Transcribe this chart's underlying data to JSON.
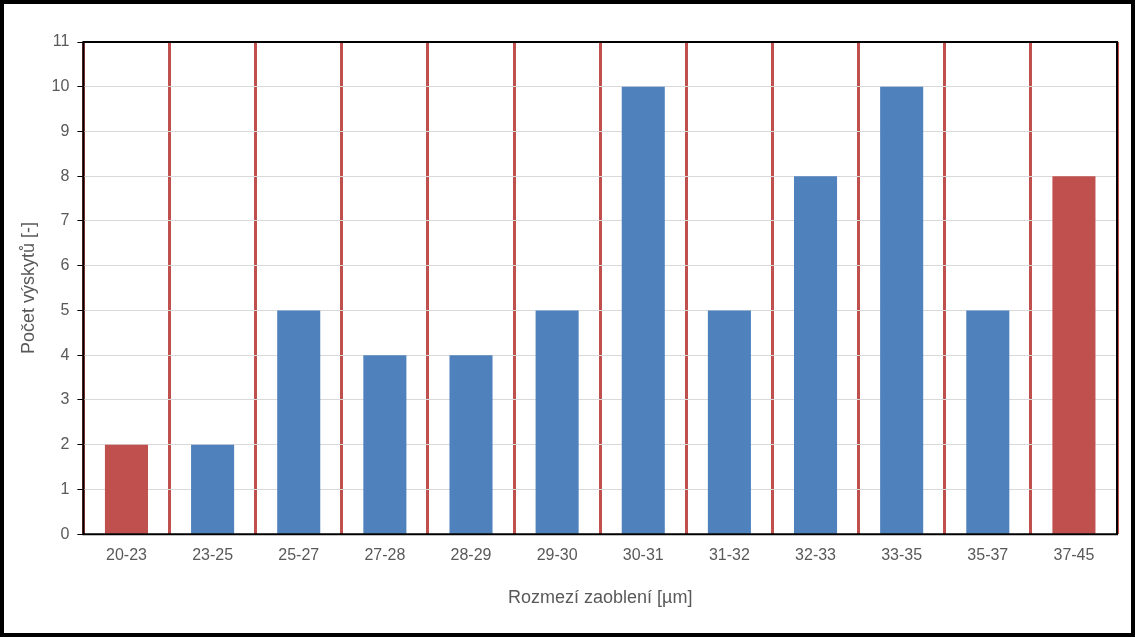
{
  "chart_data": {
    "type": "bar",
    "categories": [
      "20-23",
      "23-25",
      "25-27",
      "27-28",
      "28-29",
      "29-30",
      "30-31",
      "31-32",
      "32-33",
      "33-35",
      "35-37",
      "37-45"
    ],
    "values": [
      2,
      2,
      5,
      4,
      4,
      5,
      10,
      5,
      8,
      10,
      5,
      8
    ],
    "colors": [
      "#c0504d",
      "#4f81bd",
      "#4f81bd",
      "#4f81bd",
      "#4f81bd",
      "#4f81bd",
      "#4f81bd",
      "#4f81bd",
      "#4f81bd",
      "#4f81bd",
      "#4f81bd",
      "#c0504d"
    ],
    "xlabel": "Rozmezí zaoblení [µm]",
    "ylabel": "Počet výskytů [-]",
    "ylim": [
      0,
      11
    ],
    "yticks": [
      0,
      1,
      2,
      3,
      4,
      5,
      6,
      7,
      8,
      9,
      10,
      11
    ],
    "grid": true,
    "legend": false
  }
}
